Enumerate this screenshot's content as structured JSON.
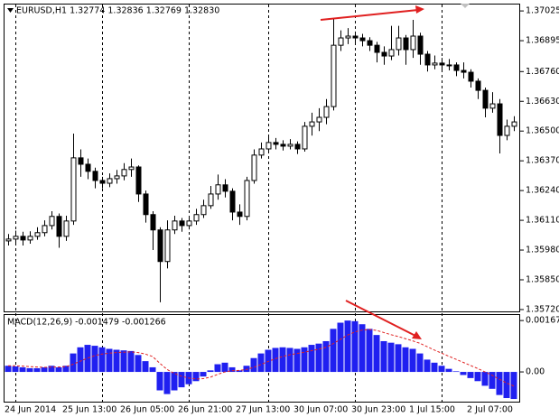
{
  "chart_data": [
    {
      "type": "candlestick",
      "title": "EURUSD,H1  1.32774 1.32836 1.32769 1.32830",
      "categories": [
        "24 Jun 2014",
        null,
        null,
        null,
        null,
        null,
        null,
        null,
        "25 Jun 13:00",
        null,
        null,
        null,
        null,
        null,
        null,
        null,
        "26 Jun 05:00",
        null,
        null,
        null,
        null,
        null,
        null,
        null,
        "26 Jun 21:00",
        null,
        null,
        null,
        null,
        null,
        null,
        null,
        "27 Jun 13:00",
        null,
        null,
        null,
        null,
        null,
        null,
        null,
        "30 Jun 07:00",
        null,
        null,
        null,
        null,
        null,
        null,
        null,
        "30 Jun 23:00",
        null,
        null,
        null,
        null,
        null,
        null,
        null,
        "1 Jul 15:00",
        null,
        null,
        null,
        null,
        null,
        null,
        null,
        "2 Jul 07:00",
        null,
        null,
        null,
        null,
        null,
        null
      ],
      "open": [
        1.3602,
        1.36028,
        1.3604,
        1.36024,
        1.3604,
        1.36056,
        1.36087,
        1.36127,
        1.3604,
        1.36107,
        1.36383,
        1.36355,
        1.36324,
        1.36284,
        1.36272,
        1.36292,
        1.36304,
        1.36332,
        1.36343,
        1.36225,
        1.36135,
        1.36068,
        1.3593,
        1.36068,
        1.36107,
        1.36087,
        1.36107,
        1.36135,
        1.36174,
        1.36225,
        1.36265,
        1.36237,
        1.36146,
        1.36127,
        1.36284,
        1.36395,
        1.36422,
        1.3645,
        1.36442,
        1.36434,
        1.36442,
        1.36422,
        1.36521,
        1.3654,
        1.3656,
        1.36607,
        1.36875,
        1.36907,
        1.36915,
        1.36907,
        1.36895,
        1.36875,
        1.36844,
        1.36828,
        1.36856,
        1.36907,
        1.36856,
        1.36915,
        1.36836,
        1.36789,
        1.36797,
        1.36789,
        1.36789,
        1.36765,
        1.36757,
        1.36718,
        1.36678,
        1.366,
        1.36619,
        1.36481,
        1.36521
      ],
      "high": [
        1.3605,
        1.36065,
        1.3606,
        1.36062,
        1.3608,
        1.3611,
        1.3615,
        1.3614,
        1.3613,
        1.36489,
        1.3642,
        1.3638,
        1.3634,
        1.363,
        1.36315,
        1.3633,
        1.3636,
        1.3638,
        1.3635,
        1.3624,
        1.3615,
        1.3608,
        1.3611,
        1.3613,
        1.3612,
        1.3613,
        1.3616,
        1.362,
        1.3626,
        1.3631,
        1.3629,
        1.3625,
        1.3618,
        1.363,
        1.3642,
        1.3645,
        1.3648,
        1.3647,
        1.3646,
        1.36465,
        1.36455,
        1.3654,
        1.3658,
        1.366,
        1.3664,
        1.36993,
        1.3694,
        1.3695,
        1.36935,
        1.36925,
        1.3691,
        1.3689,
        1.3687,
        1.3696,
        1.3696,
        1.3692,
        1.36986,
        1.3693,
        1.3685,
        1.3683,
        1.3682,
        1.36815,
        1.368,
        1.368,
        1.3677,
        1.3673,
        1.3669,
        1.3667,
        1.3664,
        1.3655,
        1.36565
      ],
      "low": [
        1.36,
        1.3601,
        1.36,
        1.36008,
        1.36025,
        1.3604,
        1.3607,
        1.3599,
        1.3602,
        1.3609,
        1.363,
        1.3629,
        1.3625,
        1.3625,
        1.36255,
        1.3627,
        1.36285,
        1.363,
        1.3619,
        1.361,
        1.3598,
        1.35752,
        1.359,
        1.3605,
        1.3606,
        1.3607,
        1.3609,
        1.3612,
        1.3616,
        1.362,
        1.3621,
        1.3611,
        1.3609,
        1.3611,
        1.3627,
        1.3638,
        1.3641,
        1.3642,
        1.36415,
        1.3642,
        1.364,
        1.3641,
        1.3648,
        1.365,
        1.3653,
        1.3659,
        1.3685,
        1.3688,
        1.3688,
        1.3687,
        1.3685,
        1.368,
        1.3679,
        1.3681,
        1.3683,
        1.3679,
        1.3682,
        1.3679,
        1.3676,
        1.3677,
        1.3676,
        1.36765,
        1.3674,
        1.3673,
        1.3669,
        1.3664,
        1.3656,
        1.3658,
        1.36402,
        1.3646,
        1.365
      ],
      "close": [
        1.36028,
        1.3604,
        1.36024,
        1.3604,
        1.36056,
        1.36087,
        1.36127,
        1.3604,
        1.36107,
        1.36383,
        1.36355,
        1.36324,
        1.36284,
        1.36272,
        1.36292,
        1.36304,
        1.36332,
        1.36343,
        1.36225,
        1.36135,
        1.36068,
        1.3593,
        1.36068,
        1.36107,
        1.36087,
        1.36107,
        1.36135,
        1.36174,
        1.36225,
        1.36265,
        1.36237,
        1.36146,
        1.36127,
        1.36284,
        1.36395,
        1.36422,
        1.3645,
        1.36442,
        1.36434,
        1.36442,
        1.36422,
        1.36521,
        1.3654,
        1.3656,
        1.36607,
        1.36875,
        1.36907,
        1.36915,
        1.36907,
        1.36895,
        1.36875,
        1.36844,
        1.36828,
        1.36856,
        1.36907,
        1.36856,
        1.36915,
        1.36836,
        1.36789,
        1.36797,
        1.36789,
        1.36789,
        1.36765,
        1.36757,
        1.36718,
        1.36678,
        1.366,
        1.36619,
        1.36481,
        1.36521,
        1.3654
      ],
      "up_color": "#ffffff",
      "down_color": "#000000",
      "ylim": [
        1.35708,
        1.37057
      ],
      "yticks": [
        1.37025,
        1.36895,
        {
          "value": 1.3676,
          "label": "1.36760"
        },
        {
          "value": 1.3663,
          "label": "1.36630"
        },
        {
          "value": 1.365,
          "label": "1.36500"
        },
        {
          "value": 1.3637,
          "label": "1.36370"
        },
        {
          "value": 1.3624,
          "label": "1.36240"
        },
        {
          "value": 1.3611,
          "label": "1.36110"
        },
        {
          "value": 1.3598,
          "label": "1.35980"
        },
        {
          "value": 1.3585,
          "label": "1.35850"
        },
        {
          "value": 1.3572,
          "label": "1.35720"
        }
      ]
    },
    {
      "type": "bar",
      "title": "MACD(12,26,9) -0.001479 -0.001266",
      "values": [
        0.0002,
        0.00018,
        0.00015,
        0.00012,
        0.00012,
        0.00015,
        0.0002,
        0.00015,
        0.0002,
        0.0006,
        0.0008,
        0.00088,
        0.00085,
        0.0008,
        0.00075,
        0.00072,
        0.0007,
        0.00068,
        0.00055,
        0.00035,
        0.00015,
        -0.0006,
        -0.00072,
        -0.0006,
        -0.0005,
        -0.0004,
        -0.0003,
        -0.00015,
        5e-05,
        0.00025,
        0.0003,
        0.00015,
        5e-05,
        0.0002,
        0.00045,
        0.0006,
        0.00072,
        0.00078,
        0.0008,
        0.00078,
        0.00075,
        0.0008,
        0.00088,
        0.00092,
        0.001,
        0.0014,
        0.0016,
        0.00167,
        0.00165,
        0.00155,
        0.0014,
        0.0012,
        0.001,
        0.00095,
        0.0009,
        0.0008,
        0.00075,
        0.0006,
        0.0004,
        0.0003,
        0.0002,
        0.0001,
        2e-05,
        -0.0001,
        -0.0002,
        -0.0003,
        -0.00045,
        -0.00055,
        -0.00075,
        -0.00085,
        -0.00088
      ],
      "color": "#2020f0",
      "signal": [
        0.0002,
        0.0002,
        0.00019,
        0.00017,
        0.00016,
        0.00015,
        0.00016,
        0.00016,
        0.00017,
        0.00025,
        0.00035,
        0.00045,
        0.00053,
        0.00058,
        0.00061,
        0.00063,
        0.00064,
        0.00065,
        0.00063,
        0.00058,
        0.0005,
        0.00028,
        8e-05,
        -5e-05,
        -0.00014,
        -0.0002,
        -0.00023,
        -0.00022,
        -0.00017,
        -8e-05,
        0,
        4e-05,
        5e-05,
        8e-05,
        0.00015,
        0.00024,
        0.00034,
        0.00043,
        0.0005,
        0.00056,
        0.0006,
        0.00064,
        0.00069,
        0.00074,
        0.0008,
        0.00092,
        0.00106,
        0.0012,
        0.0013,
        0.00136,
        0.00138,
        0.00135,
        0.00128,
        0.00121,
        0.00115,
        0.00108,
        0.00101,
        0.00093,
        0.00082,
        0.00071,
        0.00061,
        0.00051,
        0.00041,
        0.00031,
        0.00021,
        0.00011,
        0,
        -0.00011,
        -0.00024,
        -0.00036,
        -0.00046
      ],
      "signal_color": "#e02020",
      "ylim": [
        -0.000996,
        0.00185
      ],
      "yticks": [
        0.00167,
        {
          "value": 0,
          "label": "0.00"
        }
      ]
    }
  ]
}
